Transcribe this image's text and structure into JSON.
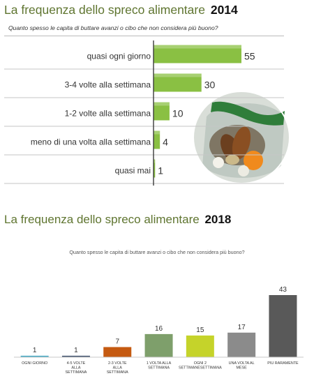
{
  "charts": [
    {
      "title_main": "La frequenza dello spreco alimentare",
      "title_year": "2014",
      "subtitle": "Quanto spesso le capita di buttare avanzi o cibo che non considera più buono?"
    },
    {
      "title_main": "La frequenza dello spreco alimentare",
      "title_year": "2018",
      "subtitle": "Quanto spesso le capita di buttare avanzi o cibo che non considera più buono?"
    }
  ],
  "chart_data": [
    {
      "type": "bar",
      "orientation": "horizontal",
      "title": "La frequenza dello spreco alimentare 2014",
      "subtitle": "Quanto spesso le capita di buttare avanzi o cibo che non considera più buono?",
      "categories": [
        "quasi ogni giorno",
        "3-4 volte alla settimana",
        "1-2 volte alla settimana",
        "meno di una volta alla settimana",
        "quasi mai"
      ],
      "values": [
        55,
        30,
        10,
        4,
        1
      ],
      "bar_color": "#8ac043",
      "xlim": [
        0,
        60
      ],
      "grid": false,
      "data_labels": true
    },
    {
      "type": "bar",
      "orientation": "vertical",
      "title": "La frequenza dello spreco alimentare 2018",
      "subtitle": "Quanto spesso le capita di buttare avanzi o cibo che non considera più buono?",
      "categories": [
        "OGNI GIORNO",
        "4-5 VOLTE ALLA SETTIMANA",
        "2-3 VOLTE ALLA SETTIMANA",
        "1 VOLTA ALLA SETTIMANA",
        "OGNI 2 SETTIMANESETTIMANA",
        "UNA VOLTA AL MESE",
        "PIU RARAMENTE"
      ],
      "values": [
        1,
        1,
        7,
        16,
        15,
        17,
        43
      ],
      "colors": [
        "#4bacc6",
        "#4a5a74",
        "#c55a11",
        "#7e9f6b",
        "#c5d32a",
        "#8b8b8b",
        "#595959"
      ],
      "ylim": [
        0,
        45
      ],
      "grid": false,
      "data_labels": true
    }
  ]
}
